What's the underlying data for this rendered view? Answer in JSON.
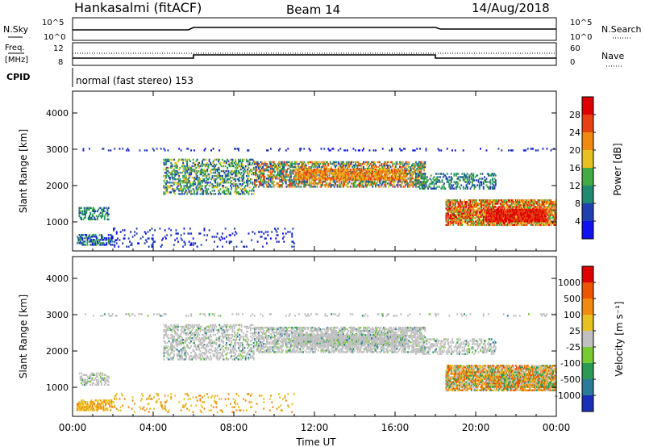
{
  "header": {
    "station": "Hankasalmi (fitACF)",
    "beam": "Beam 14",
    "date": "14/Aug/2018"
  },
  "info_panels": {
    "nsky": {
      "label": "N.Sky",
      "ticks": [
        "10^5",
        "10^0"
      ]
    },
    "nsearch": {
      "label": "N.Search",
      "ticks": [
        "10^5",
        "10^0"
      ]
    },
    "freq": {
      "label_line1": "Freq.",
      "label_line2": "[MHz]",
      "ticks": [
        "12",
        "8"
      ]
    },
    "nave": {
      "label": "Nave",
      "ticks": [
        "60",
        "0"
      ]
    },
    "cpid": {
      "label": "CPID",
      "text": "normal (fast stereo) 153"
    }
  },
  "chart_data": [
    {
      "type": "heatmap",
      "name": "power",
      "xlabel": "",
      "ylabel": "Slant Range [km]",
      "x_ticks": [
        "00:00",
        "04:00",
        "08:00",
        "12:00",
        "16:00",
        "20:00",
        "00:00"
      ],
      "y_ticks": [
        "1000",
        "2000",
        "3000",
        "4000"
      ],
      "xlim": [
        0,
        24
      ],
      "ylim": [
        200,
        4600
      ],
      "colorbar": {
        "label": "Power [dB]",
        "ticks": [
          "4",
          "8",
          "12",
          "16",
          "20",
          "24",
          "28"
        ],
        "colors": [
          "#1212ee",
          "#2040b0",
          "#1e8a70",
          "#44aa44",
          "#e8c020",
          "#f08a10",
          "#e84010",
          "#dd0000"
        ]
      }
    },
    {
      "type": "heatmap",
      "name": "velocity",
      "xlabel": "Time UT",
      "ylabel": "Slant Range [km]",
      "x_ticks": [
        "00:00",
        "04:00",
        "08:00",
        "12:00",
        "16:00",
        "20:00",
        "00:00"
      ],
      "y_ticks": [
        "1000",
        "2000",
        "3000",
        "4000"
      ],
      "xlim": [
        0,
        24
      ],
      "ylim": [
        200,
        4600
      ],
      "colorbar": {
        "label": "Velocity [m s⁻¹]",
        "ticks": [
          "1000",
          "500",
          "100",
          "25",
          "-25",
          "-100",
          "-500",
          "-1000"
        ],
        "colors": [
          "#1a2fb8",
          "#2a7a9a",
          "#2a9a55",
          "#77cc33",
          "#c0c0c0",
          "#e8c020",
          "#f08a10",
          "#ee5500",
          "#dd0000"
        ]
      }
    }
  ],
  "colors": {
    "ground_scatter": "#bdbdbd",
    "axis": "#000000"
  }
}
